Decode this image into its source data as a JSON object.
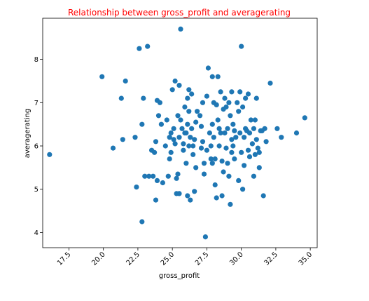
{
  "chart_data": {
    "type": "scatter",
    "title": "Relationship between gross_profit and averagerating",
    "xlabel": "gross_profit",
    "ylabel": "averagerating",
    "xlim": [
      15.6,
      35.5
    ],
    "ylim": [
      3.65,
      8.95
    ],
    "xticks": [
      17.5,
      20.0,
      22.5,
      25.0,
      27.5,
      30.0,
      32.5,
      35.0
    ],
    "yticks": [
      4,
      5,
      6,
      7,
      8
    ],
    "grid": false,
    "colors": {
      "title": "#ff0000",
      "marker": "#1f77b4",
      "xtick_labels": "#800080",
      "ytick_labels": "#000000"
    },
    "series": [
      {
        "points": [
          [
            16.1,
            5.8
          ],
          [
            19.9,
            7.6
          ],
          [
            20.7,
            5.95
          ],
          [
            21.4,
            6.15
          ],
          [
            21.3,
            7.1
          ],
          [
            21.6,
            7.5
          ],
          [
            22.4,
            5.05
          ],
          [
            22.3,
            6.2
          ],
          [
            22.6,
            8.25
          ],
          [
            22.8,
            6.5
          ],
          [
            22.8,
            4.25
          ],
          [
            22.9,
            7.1
          ],
          [
            23.0,
            5.3
          ],
          [
            23.2,
            8.3
          ],
          [
            23.3,
            5.3
          ],
          [
            23.5,
            5.9
          ],
          [
            23.6,
            5.3
          ],
          [
            23.7,
            5.85
          ],
          [
            23.8,
            4.75
          ],
          [
            23.8,
            6.1
          ],
          [
            23.9,
            7.05
          ],
          [
            23.9,
            5.2
          ],
          [
            24.0,
            6.7
          ],
          [
            24.1,
            7.0
          ],
          [
            24.2,
            6.5
          ],
          [
            24.3,
            5.15
          ],
          [
            24.5,
            6.0
          ],
          [
            24.6,
            6.6
          ],
          [
            24.7,
            5.3
          ],
          [
            24.8,
            6.2
          ],
          [
            24.8,
            5.7
          ],
          [
            24.9,
            5.85
          ],
          [
            24.9,
            6.3
          ],
          [
            25.0,
            7.3
          ],
          [
            25.1,
            6.4
          ],
          [
            25.2,
            7.5
          ],
          [
            25.1,
            6.15
          ],
          [
            25.2,
            6.05
          ],
          [
            25.3,
            5.25
          ],
          [
            25.3,
            4.9
          ],
          [
            25.4,
            5.35
          ],
          [
            25.4,
            6.7
          ],
          [
            25.5,
            7.4
          ],
          [
            25.5,
            6.2
          ],
          [
            25.5,
            4.9
          ],
          [
            25.6,
            8.7
          ],
          [
            25.6,
            6.6
          ],
          [
            25.7,
            6.4
          ],
          [
            25.8,
            6.05
          ],
          [
            25.8,
            5.9
          ],
          [
            25.9,
            6.9
          ],
          [
            25.9,
            6.3
          ],
          [
            26.0,
            5.6
          ],
          [
            26.0,
            6.3
          ],
          [
            26.1,
            7.1
          ],
          [
            26.1,
            6.5
          ],
          [
            26.1,
            4.85
          ],
          [
            26.2,
            6.0
          ],
          [
            26.2,
            7.3
          ],
          [
            26.2,
            6.8
          ],
          [
            26.3,
            6.2
          ],
          [
            26.3,
            4.75
          ],
          [
            26.4,
            7.2
          ],
          [
            26.4,
            6.4
          ],
          [
            26.5,
            6.0
          ],
          [
            26.5,
            5.8
          ],
          [
            26.6,
            6.15
          ],
          [
            26.6,
            4.95
          ],
          [
            26.7,
            6.55
          ],
          [
            26.7,
            5.5
          ],
          [
            26.8,
            6.8
          ],
          [
            27.0,
            6.7
          ],
          [
            27.1,
            6.45
          ],
          [
            27.1,
            5.95
          ],
          [
            27.2,
            7.0
          ],
          [
            27.2,
            6.1
          ],
          [
            27.3,
            5.6
          ],
          [
            27.3,
            5.35
          ],
          [
            27.4,
            3.9
          ],
          [
            27.5,
            7.15
          ],
          [
            27.5,
            5.9
          ],
          [
            27.6,
            7.8
          ],
          [
            27.7,
            6.3
          ],
          [
            27.8,
            6.0
          ],
          [
            27.8,
            5.7
          ],
          [
            27.9,
            6.5
          ],
          [
            27.9,
            7.6
          ],
          [
            27.9,
            5.6
          ],
          [
            28.0,
            7.0
          ],
          [
            28.0,
            6.2
          ],
          [
            28.1,
            5.1
          ],
          [
            28.1,
            5.7
          ],
          [
            28.2,
            6.95
          ],
          [
            28.2,
            4.8
          ],
          [
            28.3,
            7.6
          ],
          [
            28.3,
            6.6
          ],
          [
            28.4,
            6.4
          ],
          [
            28.4,
            6.0
          ],
          [
            28.5,
            6.3
          ],
          [
            28.5,
            7.25
          ],
          [
            28.6,
            5.65
          ],
          [
            28.6,
            4.85
          ],
          [
            28.7,
            5.4
          ],
          [
            28.7,
            6.85
          ],
          [
            28.8,
            6.3
          ],
          [
            28.8,
            7.1
          ],
          [
            28.9,
            5.95
          ],
          [
            28.9,
            6.9
          ],
          [
            29.0,
            6.4
          ],
          [
            29.0,
            5.6
          ],
          [
            29.1,
            7.0
          ],
          [
            29.1,
            5.3
          ],
          [
            29.2,
            6.7
          ],
          [
            29.2,
            4.65
          ],
          [
            29.3,
            6.15
          ],
          [
            29.3,
            5.85
          ],
          [
            29.3,
            7.25
          ],
          [
            29.4,
            6.5
          ],
          [
            29.4,
            6.0
          ],
          [
            29.5,
            6.35
          ],
          [
            29.5,
            5.7
          ],
          [
            29.6,
            6.2
          ],
          [
            29.7,
            7.0
          ],
          [
            29.8,
            5.2
          ],
          [
            29.8,
            6.8
          ],
          [
            29.9,
            6.3
          ],
          [
            29.9,
            7.25
          ],
          [
            30.0,
            8.3
          ],
          [
            30.0,
            5.85
          ],
          [
            30.1,
            5.0
          ],
          [
            30.1,
            6.9
          ],
          [
            30.2,
            6.2
          ],
          [
            30.2,
            5.55
          ],
          [
            30.3,
            6.4
          ],
          [
            30.3,
            7.1
          ],
          [
            30.4,
            6.35
          ],
          [
            30.5,
            5.9
          ],
          [
            30.5,
            7.2
          ],
          [
            30.6,
            6.3
          ],
          [
            30.6,
            5.75
          ],
          [
            30.7,
            6.6
          ],
          [
            30.8,
            6.05
          ],
          [
            30.9,
            6.4
          ],
          [
            30.9,
            5.3
          ],
          [
            31.0,
            6.6
          ],
          [
            31.0,
            5.8
          ],
          [
            31.1,
            6.15
          ],
          [
            31.1,
            7.1
          ],
          [
            31.2,
            5.95
          ],
          [
            31.3,
            5.5
          ],
          [
            31.3,
            5.85
          ],
          [
            31.4,
            6.35
          ],
          [
            31.5,
            6.35
          ],
          [
            31.6,
            4.85
          ],
          [
            31.7,
            6.4
          ],
          [
            31.8,
            6.1
          ],
          [
            32.1,
            7.45
          ],
          [
            32.6,
            6.4
          ],
          [
            32.9,
            6.2
          ],
          [
            34.0,
            6.3
          ],
          [
            34.6,
            6.65
          ]
        ]
      }
    ]
  }
}
